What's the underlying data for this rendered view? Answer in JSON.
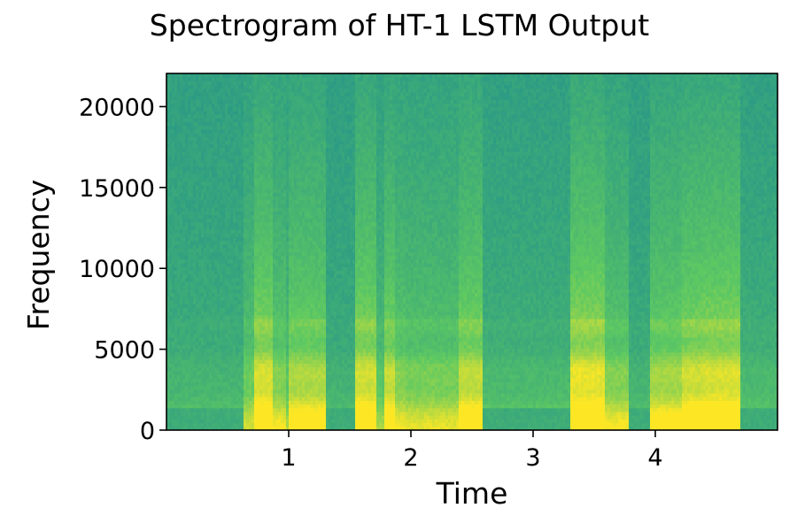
{
  "chart_data": {
    "type": "heatmap",
    "title": "Spectrogram of HT-1 LSTM Output",
    "xlabel": "Time",
    "ylabel": "Frequency",
    "xlim": [
      0.0,
      5.0
    ],
    "ylim": [
      0,
      22050
    ],
    "xticks": [
      1,
      2,
      3,
      4
    ],
    "yticks": [
      0,
      5000,
      10000,
      15000,
      20000
    ],
    "colormap": "viridis",
    "grid": false,
    "legend": "none",
    "energy_segments": [
      {
        "start": 0.0,
        "end": 0.64,
        "level": 0.15
      },
      {
        "start": 0.64,
        "end": 0.72,
        "level": 0.45
      },
      {
        "start": 0.72,
        "end": 0.88,
        "level": 0.88
      },
      {
        "start": 0.88,
        "end": 0.97,
        "level": 0.55
      },
      {
        "start": 0.97,
        "end": 1.0,
        "level": 0.35
      },
      {
        "start": 1.0,
        "end": 1.3,
        "level": 0.72
      },
      {
        "start": 1.3,
        "end": 1.55,
        "level": 0.12
      },
      {
        "start": 1.55,
        "end": 1.72,
        "level": 0.86
      },
      {
        "start": 1.72,
        "end": 1.78,
        "level": 0.35
      },
      {
        "start": 1.78,
        "end": 1.86,
        "level": 0.8
      },
      {
        "start": 1.86,
        "end": 1.96,
        "level": 0.55
      },
      {
        "start": 1.96,
        "end": 2.4,
        "level": 0.5
      },
      {
        "start": 2.4,
        "end": 2.58,
        "level": 0.8
      },
      {
        "start": 2.58,
        "end": 3.3,
        "level": 0.2
      },
      {
        "start": 3.3,
        "end": 3.58,
        "level": 0.95
      },
      {
        "start": 3.58,
        "end": 3.78,
        "level": 0.55
      },
      {
        "start": 3.78,
        "end": 3.95,
        "level": 0.14
      },
      {
        "start": 3.95,
        "end": 4.22,
        "level": 0.68
      },
      {
        "start": 4.22,
        "end": 4.4,
        "level": 0.85
      },
      {
        "start": 4.4,
        "end": 4.7,
        "level": 0.9
      },
      {
        "start": 4.7,
        "end": 5.0,
        "level": 0.2
      }
    ]
  }
}
